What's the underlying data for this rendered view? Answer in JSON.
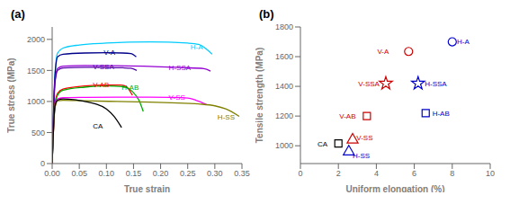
{
  "chart_data": [
    {
      "type": "line",
      "title": "(a)",
      "x_label": "True strain",
      "y_label": "True stress (MPa)",
      "xlim": [
        0,
        0.35
      ],
      "ylim": [
        0,
        2200
      ],
      "xticks": [
        {
          "value": 0.0,
          "label": "0.00"
        },
        0.05,
        {
          "value": 0.1,
          "label": "0.10"
        },
        0.15,
        {
          "value": 0.2,
          "label": "0.20"
        },
        0.25,
        {
          "value": 0.3,
          "label": "0.30"
        },
        0.35
      ],
      "yticks": [
        0,
        500,
        1000,
        1500,
        2000
      ],
      "grid": false,
      "series": [
        {
          "color": "#00CCFF",
          "x": [
            0,
            0.005,
            0.01,
            0.02,
            0.05,
            0.1,
            0.18,
            0.25,
            0.27,
            0.295
          ],
          "values": [
            0,
            1400,
            1780,
            1860,
            1910,
            1940,
            1960,
            1940,
            1920,
            1760
          ]
        },
        {
          "color": "#00008B",
          "x": [
            0,
            0.005,
            0.01,
            0.02,
            0.06,
            0.1,
            0.13,
            0.145,
            0.155
          ],
          "values": [
            0,
            1400,
            1720,
            1760,
            1780,
            1785,
            1780,
            1770,
            1720
          ]
        },
        {
          "color": "#9400D3",
          "x": [
            0,
            0.005,
            0.01,
            0.02,
            0.06,
            0.12,
            0.18,
            0.24,
            0.28,
            0.292
          ],
          "values": [
            0,
            1300,
            1530,
            1570,
            1580,
            1575,
            1565,
            1545,
            1530,
            1490
          ]
        },
        {
          "color": "#5500AA",
          "x": [
            0,
            0.005,
            0.01,
            0.02,
            0.06,
            0.1,
            0.13,
            0.145,
            0.156
          ],
          "values": [
            0,
            1280,
            1500,
            1540,
            1550,
            1548,
            1542,
            1535,
            1500
          ]
        },
        {
          "color": "#FF0000",
          "x": [
            0,
            0.005,
            0.01,
            0.02,
            0.06,
            0.1,
            0.125,
            0.135,
            0.148
          ],
          "values": [
            0,
            950,
            1130,
            1200,
            1250,
            1265,
            1265,
            1250,
            1100
          ]
        },
        {
          "color": "#00AA00",
          "x": [
            0,
            0.005,
            0.01,
            0.02,
            0.06,
            0.1,
            0.13,
            0.148,
            0.16,
            0.168
          ],
          "values": [
            0,
            920,
            1100,
            1180,
            1230,
            1250,
            1240,
            1160,
            1020,
            840
          ]
        },
        {
          "color": "#FF00FF",
          "x": [
            0,
            0.005,
            0.01,
            0.02,
            0.06,
            0.12,
            0.18,
            0.22,
            0.25,
            0.265,
            0.285
          ],
          "values": [
            0,
            900,
            1040,
            1060,
            1065,
            1068,
            1068,
            1065,
            1055,
            1020,
            950
          ]
        },
        {
          "color": "#808000",
          "x": [
            0,
            0.005,
            0.01,
            0.02,
            0.06,
            0.12,
            0.18,
            0.22,
            0.27,
            0.3,
            0.32,
            0.345
          ],
          "values": [
            0,
            880,
            1010,
            1020,
            1010,
            1000,
            990,
            980,
            960,
            930,
            880,
            760
          ]
        },
        {
          "color": "#000000",
          "x": [
            0,
            0.005,
            0.01,
            0.02,
            0.04,
            0.06,
            0.08,
            0.1,
            0.115,
            0.128
          ],
          "values": [
            0,
            920,
            1020,
            1040,
            1030,
            1000,
            960,
            880,
            750,
            580
          ]
        }
      ],
      "annotations": [
        {
          "text": "H-A",
          "x": 0.255,
          "y": 1880,
          "color": "#00CCFF"
        },
        {
          "text": "V-A",
          "x": 0.095,
          "y": 1790,
          "color": "#00008B"
        },
        {
          "text": "H-SSA",
          "x": 0.215,
          "y": 1545,
          "color": "#9400D3"
        },
        {
          "text": "V-SSA",
          "x": 0.075,
          "y": 1555,
          "color": "#5500AA"
        },
        {
          "text": "V-AB",
          "x": 0.075,
          "y": 1265,
          "color": "#FF0000"
        },
        {
          "text": "H-AB",
          "x": 0.128,
          "y": 1235,
          "color": "#00AA00"
        },
        {
          "text": "V-SS",
          "x": 0.215,
          "y": 1075,
          "color": "#FF00FF"
        },
        {
          "text": "H-SS",
          "x": 0.305,
          "y": 755,
          "color": "#808000"
        },
        {
          "text": "CA",
          "x": 0.075,
          "y": 600,
          "color": "#000000"
        }
      ]
    },
    {
      "type": "scatter",
      "title": "(b)",
      "x_label": "Uniform elongation (%)",
      "y_label": "Tensile strength (MPa)",
      "xlim": [
        0,
        10
      ],
      "ylim": [
        880,
        1800
      ],
      "xticks": [
        0,
        2,
        4,
        6,
        8,
        10
      ],
      "yticks": [
        1000,
        1200,
        1400,
        1600,
        1800
      ],
      "grid": false,
      "series": [
        {
          "color": "#0000CD",
          "marker": "circle",
          "x": [
            8.0
          ],
          "values": [
            1700
          ]
        },
        {
          "color": "#CC0000",
          "marker": "circle",
          "x": [
            5.7
          ],
          "values": [
            1635
          ]
        },
        {
          "color": "#0000CD",
          "marker": "star",
          "x": [
            6.2
          ],
          "values": [
            1420
          ]
        },
        {
          "color": "#CC0000",
          "marker": "star",
          "x": [
            4.5
          ],
          "values": [
            1420
          ]
        },
        {
          "color": "#0000CD",
          "marker": "square",
          "x": [
            6.6
          ],
          "values": [
            1220
          ]
        },
        {
          "color": "#CC0000",
          "marker": "square",
          "x": [
            3.5
          ],
          "values": [
            1200
          ]
        },
        {
          "color": "#0000CD",
          "marker": "triangle",
          "x": [
            2.55
          ],
          "values": [
            960
          ]
        },
        {
          "color": "#CC0000",
          "marker": "triangle",
          "x": [
            2.75
          ],
          "values": [
            1040
          ]
        },
        {
          "color": "#000000",
          "marker": "square",
          "x": [
            2.0
          ],
          "values": [
            1015
          ]
        }
      ],
      "annotations": [
        {
          "text": "H-A",
          "x": 8.25,
          "y": 1700,
          "color": "#0000CD"
        },
        {
          "text": "V-A",
          "x": 4.05,
          "y": 1635,
          "color": "#CC0000"
        },
        {
          "text": "H-SSA",
          "x": 6.55,
          "y": 1420,
          "color": "#0000CD"
        },
        {
          "text": "V-SSA",
          "x": 3.05,
          "y": 1420,
          "color": "#CC0000"
        },
        {
          "text": "H-AB",
          "x": 6.95,
          "y": 1220,
          "color": "#0000CD"
        },
        {
          "text": "V-AB",
          "x": 2.05,
          "y": 1200,
          "color": "#CC0000"
        },
        {
          "text": "H-SS",
          "x": 2.75,
          "y": 935,
          "color": "#0000CD"
        },
        {
          "text": "V-SS",
          "x": 2.95,
          "y": 1055,
          "color": "#CC0000"
        },
        {
          "text": "CA",
          "x": 0.9,
          "y": 1015,
          "color": "#000000"
        }
      ]
    }
  ]
}
